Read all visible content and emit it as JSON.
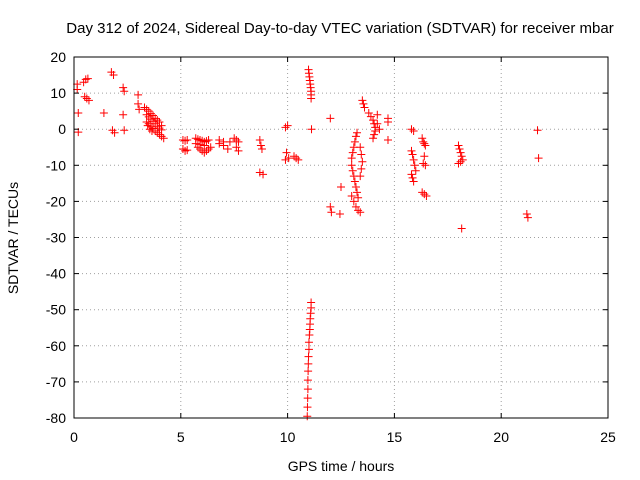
{
  "chart_data": {
    "type": "scatter",
    "title": "Day 312 of 2024, Sidereal Day-to-day VTEC variation (SDTVAR) for receiver mbar",
    "xlabel": "GPS time / hours",
    "ylabel": "SDTVAR / TECUs",
    "xlim": [
      0,
      25
    ],
    "ylim": [
      -80,
      20
    ],
    "x_ticks": [
      0,
      5,
      10,
      15,
      20,
      25
    ],
    "y_ticks": [
      20,
      10,
      0,
      -10,
      -20,
      -30,
      -40,
      -50,
      -60,
      -70,
      -80
    ],
    "grid": true,
    "marker": "+",
    "color": "#ff0000",
    "series": [
      {
        "name": "SDTVAR",
        "points": [
          [
            0.15,
            12.5
          ],
          [
            0.15,
            11.0
          ],
          [
            0.2,
            4.5
          ],
          [
            0.2,
            -0.8
          ],
          [
            0.45,
            13.0
          ],
          [
            0.55,
            13.8
          ],
          [
            0.65,
            14.0
          ],
          [
            0.5,
            9.0
          ],
          [
            0.6,
            8.5
          ],
          [
            0.7,
            8.0
          ],
          [
            1.4,
            4.5
          ],
          [
            1.75,
            15.8
          ],
          [
            1.85,
            15.0
          ],
          [
            1.8,
            -0.3
          ],
          [
            1.9,
            -1.0
          ],
          [
            2.3,
            11.5
          ],
          [
            2.35,
            10.5
          ],
          [
            2.3,
            4.0
          ],
          [
            2.35,
            -0.3
          ],
          [
            3.0,
            9.5
          ],
          [
            3.0,
            7.0
          ],
          [
            3.05,
            5.5
          ],
          [
            3.3,
            6.0
          ],
          [
            3.4,
            5.5
          ],
          [
            3.5,
            5.0
          ],
          [
            3.6,
            4.3
          ],
          [
            3.7,
            3.8
          ],
          [
            3.8,
            3.0
          ],
          [
            3.9,
            2.5
          ],
          [
            4.0,
            2.0
          ],
          [
            4.1,
            1.0
          ],
          [
            3.4,
            4.0
          ],
          [
            3.5,
            3.4
          ],
          [
            3.6,
            2.8
          ],
          [
            3.7,
            2.2
          ],
          [
            3.8,
            1.5
          ],
          [
            3.9,
            0.8
          ],
          [
            4.0,
            0.3
          ],
          [
            4.1,
            -0.2
          ],
          [
            3.5,
            1.5
          ],
          [
            3.6,
            0.8
          ],
          [
            3.7,
            0.2
          ],
          [
            3.8,
            -0.5
          ],
          [
            3.9,
            -1.0
          ],
          [
            4.0,
            -1.5
          ],
          [
            4.1,
            -2.0
          ],
          [
            4.2,
            -2.5
          ],
          [
            3.4,
            2.0
          ],
          [
            3.45,
            1.0
          ],
          [
            3.55,
            0.0
          ],
          [
            3.65,
            -0.5
          ],
          [
            5.1,
            -3.0
          ],
          [
            5.2,
            -3.2
          ],
          [
            5.3,
            -3.0
          ],
          [
            5.1,
            -5.5
          ],
          [
            5.2,
            -6.0
          ],
          [
            5.3,
            -5.8
          ],
          [
            5.7,
            -2.5
          ],
          [
            5.8,
            -2.8
          ],
          [
            5.9,
            -3.0
          ],
          [
            6.0,
            -3.2
          ],
          [
            6.1,
            -3.5
          ],
          [
            6.2,
            -3.3
          ],
          [
            6.3,
            -3.0
          ],
          [
            5.8,
            -5.0
          ],
          [
            5.9,
            -5.5
          ],
          [
            6.0,
            -6.0
          ],
          [
            6.1,
            -6.5
          ],
          [
            6.2,
            -6.0
          ],
          [
            6.3,
            -5.5
          ],
          [
            6.4,
            -5.0
          ],
          [
            5.7,
            -4.0
          ],
          [
            5.9,
            -4.2
          ],
          [
            6.1,
            -4.5
          ],
          [
            6.8,
            -3.0
          ],
          [
            6.8,
            -4.0
          ],
          [
            7.0,
            -3.5
          ],
          [
            7.0,
            -4.5
          ],
          [
            7.3,
            -3.5
          ],
          [
            7.2,
            -5.5
          ],
          [
            7.5,
            -2.5
          ],
          [
            7.6,
            -3.0
          ],
          [
            7.7,
            -3.5
          ],
          [
            7.6,
            -5.0
          ],
          [
            7.7,
            -6.0
          ],
          [
            8.7,
            -3.0
          ],
          [
            8.75,
            -4.5
          ],
          [
            8.8,
            -5.5
          ],
          [
            8.7,
            -12.0
          ],
          [
            8.85,
            -12.5
          ],
          [
            9.9,
            0.5
          ],
          [
            10.0,
            1.0
          ],
          [
            9.95,
            -6.5
          ],
          [
            10.05,
            -8.0
          ],
          [
            9.9,
            -8.5
          ],
          [
            10.3,
            -7.5
          ],
          [
            10.4,
            -8.0
          ],
          [
            10.5,
            -8.5
          ],
          [
            10.98,
            16.5
          ],
          [
            11.0,
            15.5
          ],
          [
            11.02,
            14.5
          ],
          [
            11.04,
            13.5
          ],
          [
            11.06,
            12.5
          ],
          [
            11.08,
            11.5
          ],
          [
            11.1,
            10.5
          ],
          [
            11.1,
            9.5
          ],
          [
            11.1,
            8.5
          ],
          [
            11.12,
            0.0
          ],
          [
            11.1,
            -48.0
          ],
          [
            11.1,
            -49.5
          ],
          [
            11.08,
            -51.0
          ],
          [
            11.06,
            -52.5
          ],
          [
            11.05,
            -54.0
          ],
          [
            11.04,
            -55.5
          ],
          [
            11.02,
            -57.0
          ],
          [
            11.0,
            -59.0
          ],
          [
            11.0,
            -61.0
          ],
          [
            10.98,
            -63.0
          ],
          [
            10.97,
            -65.0
          ],
          [
            10.96,
            -67.0
          ],
          [
            10.95,
            -69.5
          ],
          [
            10.95,
            -72.0
          ],
          [
            10.94,
            -74.5
          ],
          [
            10.93,
            -77.0
          ],
          [
            10.92,
            -79.5
          ],
          [
            12.0,
            3.0
          ],
          [
            12.0,
            -21.5
          ],
          [
            12.05,
            -23.0
          ],
          [
            12.5,
            -16.0
          ],
          [
            12.45,
            -23.5
          ],
          [
            13.0,
            -8.0
          ],
          [
            13.05,
            -6.5
          ],
          [
            13.1,
            -5.0
          ],
          [
            13.15,
            -3.5
          ],
          [
            13.2,
            -2.0
          ],
          [
            13.25,
            -1.0
          ],
          [
            13.0,
            -10.0
          ],
          [
            13.05,
            -11.5
          ],
          [
            13.1,
            -13.0
          ],
          [
            13.15,
            -14.5
          ],
          [
            13.2,
            -16.0
          ],
          [
            13.25,
            -17.5
          ],
          [
            13.3,
            -19.0
          ],
          [
            13.0,
            -18.5
          ],
          [
            13.1,
            -20.0
          ],
          [
            13.2,
            -21.5
          ],
          [
            13.3,
            -22.5
          ],
          [
            13.4,
            -23.0
          ],
          [
            13.4,
            -5.0
          ],
          [
            13.45,
            -7.0
          ],
          [
            13.5,
            -9.0
          ],
          [
            13.45,
            -11.0
          ],
          [
            13.4,
            -13.0
          ],
          [
            13.5,
            8.0
          ],
          [
            13.55,
            7.0
          ],
          [
            13.6,
            6.0
          ],
          [
            13.8,
            4.5
          ],
          [
            13.9,
            3.5
          ],
          [
            14.0,
            2.5
          ],
          [
            14.05,
            1.5
          ],
          [
            14.1,
            0.5
          ],
          [
            14.1,
            -0.5
          ],
          [
            14.05,
            -1.5
          ],
          [
            14.0,
            -2.5
          ],
          [
            14.2,
            4.0
          ],
          [
            14.2,
            1.5
          ],
          [
            14.3,
            0.0
          ],
          [
            14.7,
            3.0
          ],
          [
            14.7,
            2.0
          ],
          [
            14.7,
            -3.0
          ],
          [
            15.8,
            0.0
          ],
          [
            15.9,
            -0.5
          ],
          [
            15.8,
            -6.0
          ],
          [
            15.85,
            -7.0
          ],
          [
            15.9,
            -8.5
          ],
          [
            15.95,
            -10.0
          ],
          [
            16.0,
            -11.5
          ],
          [
            15.8,
            -12.5
          ],
          [
            15.85,
            -13.5
          ],
          [
            15.9,
            -14.5
          ],
          [
            16.3,
            -2.5
          ],
          [
            16.35,
            -3.5
          ],
          [
            16.4,
            -4.0
          ],
          [
            16.45,
            -4.5
          ],
          [
            16.4,
            -7.5
          ],
          [
            16.45,
            -10.0
          ],
          [
            16.35,
            -9.5
          ],
          [
            16.3,
            -17.5
          ],
          [
            16.4,
            -18.0
          ],
          [
            16.5,
            -18.5
          ],
          [
            18.0,
            -4.5
          ],
          [
            18.05,
            -5.5
          ],
          [
            18.1,
            -6.5
          ],
          [
            18.15,
            -7.5
          ],
          [
            18.2,
            -8.5
          ],
          [
            18.1,
            -9.0
          ],
          [
            18.0,
            -9.5
          ],
          [
            18.15,
            -27.5
          ],
          [
            21.2,
            -23.5
          ],
          [
            21.25,
            -24.5
          ],
          [
            21.7,
            -0.3
          ],
          [
            21.75,
            -8.0
          ]
        ]
      }
    ]
  }
}
